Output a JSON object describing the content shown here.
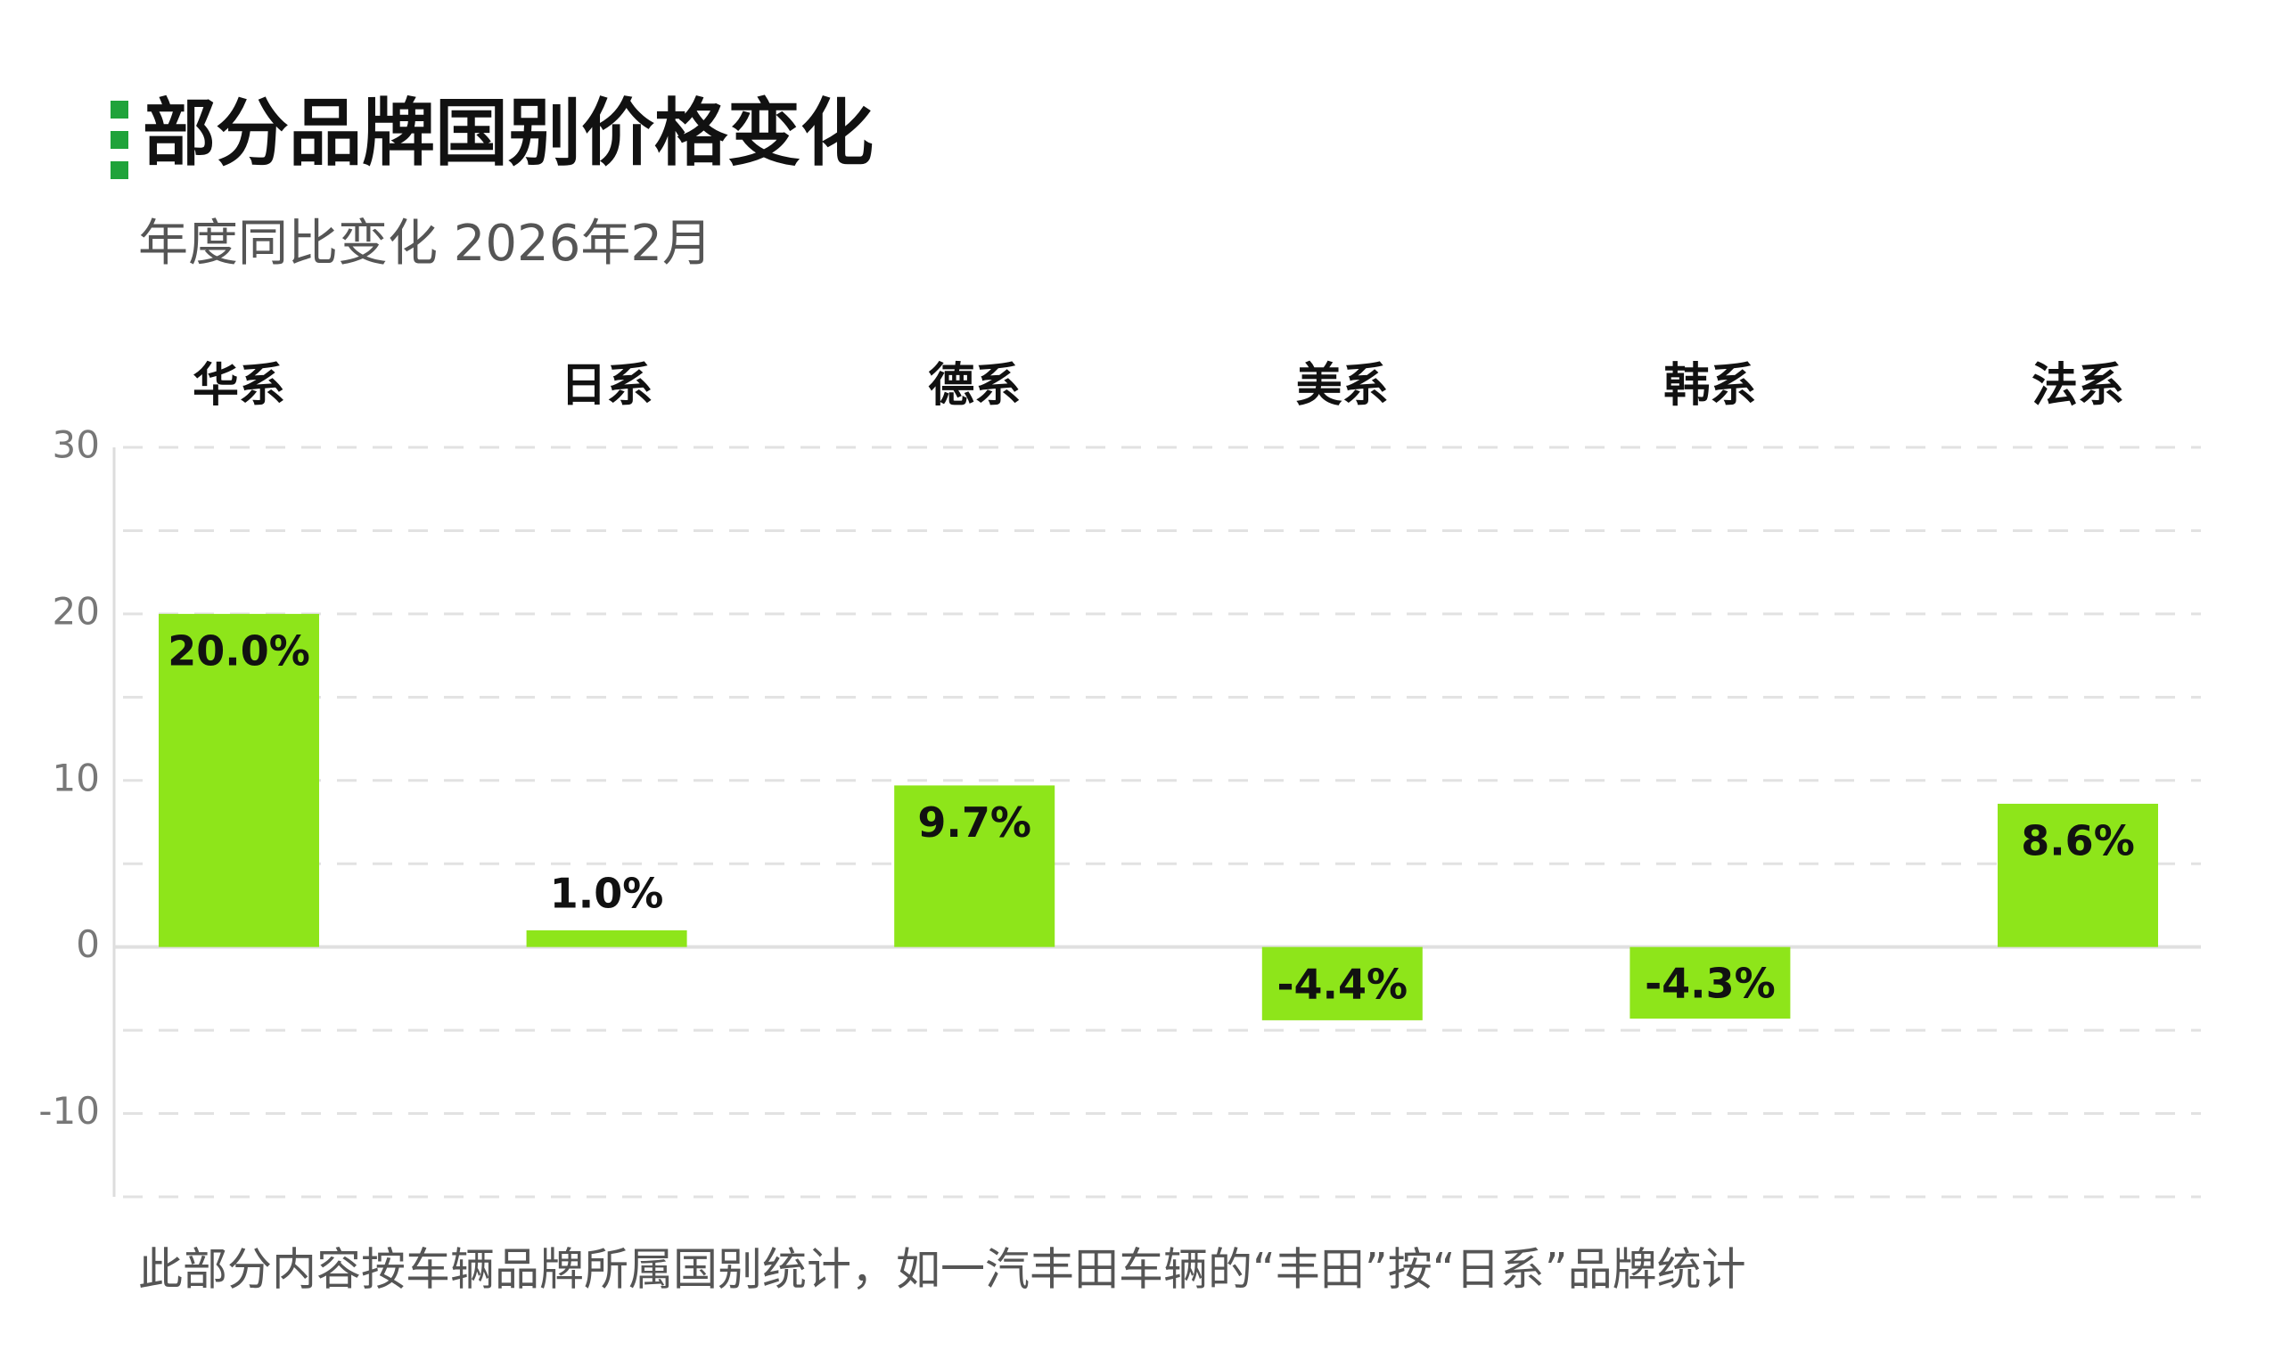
{
  "chart_data": {
    "type": "bar",
    "title": "部分品牌国别价格变化",
    "subtitle": "年度同比变化 2026年2月",
    "categories": [
      "华系",
      "日系",
      "德系",
      "美系",
      "韩系",
      "法系"
    ],
    "values": [
      20.0,
      1.0,
      9.7,
      -4.4,
      -4.3,
      8.6
    ],
    "value_labels": [
      "20.0%",
      "1.0%",
      "9.7%",
      "-4.4%",
      "-4.3%",
      "8.6%"
    ],
    "color": "#8ee51a",
    "ylim": [
      -15,
      30
    ],
    "yticks": [
      -10,
      0,
      10,
      20,
      30
    ],
    "minor_yticks": [
      -15,
      -5,
      5,
      15,
      25
    ],
    "grid": true,
    "footnote": "此部分内容按车辆品牌所属国别统计，如一汽丰田车辆的“丰田”按“日系”品牌统计"
  }
}
